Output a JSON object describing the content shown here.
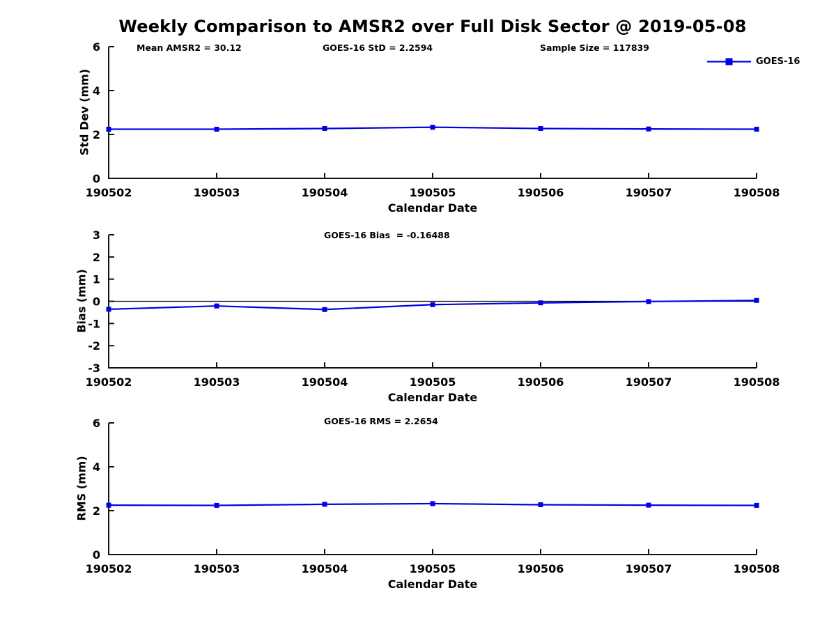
{
  "title": "Weekly Comparison to AMSR2 over Full Disk Sector @ 2019-05-08",
  "legend": {
    "label": "GOES-16"
  },
  "colors": {
    "series_blue": "#0000e6",
    "axis_black": "#111111"
  },
  "chart_data": [
    {
      "type": "line",
      "categories": [
        "190502",
        "190503",
        "190504",
        "190505",
        "190506",
        "190507",
        "190508"
      ],
      "series": [
        {
          "name": "GOES-16",
          "values": [
            2.24,
            2.24,
            2.27,
            2.33,
            2.27,
            2.25,
            2.24
          ]
        }
      ],
      "title": "",
      "xlabel": "Calendar Date",
      "ylabel": "Std Dev (mm)",
      "ylim": [
        0,
        6
      ],
      "yticks": [
        0,
        2,
        4,
        6
      ],
      "grid": false,
      "zero_line": false,
      "legend_position": "northeast-outside",
      "annotations": [
        "Mean AMSR2 = 30.12",
        "GOES-16 StD = 2.2594",
        "Sample Size = 117839"
      ]
    },
    {
      "type": "line",
      "categories": [
        "190502",
        "190503",
        "190504",
        "190505",
        "190506",
        "190507",
        "190508"
      ],
      "series": [
        {
          "name": "GOES-16",
          "values": [
            -0.36,
            -0.21,
            -0.37,
            -0.15,
            -0.07,
            -0.01,
            0.04
          ]
        }
      ],
      "title": "",
      "xlabel": "Calendar Date",
      "ylabel": "Bias (mm)",
      "ylim": [
        -3,
        3
      ],
      "yticks": [
        -3,
        -2,
        -1,
        0,
        1,
        2,
        3
      ],
      "grid": false,
      "zero_line": true,
      "annotations": [
        "GOES-16 Bias  = -0.16488"
      ]
    },
    {
      "type": "line",
      "categories": [
        "190502",
        "190503",
        "190504",
        "190505",
        "190506",
        "190507",
        "190508"
      ],
      "series": [
        {
          "name": "GOES-16",
          "values": [
            2.25,
            2.24,
            2.29,
            2.32,
            2.27,
            2.25,
            2.24
          ]
        }
      ],
      "title": "",
      "xlabel": "Calendar Date",
      "ylabel": "RMS (mm)",
      "ylim": [
        0,
        6
      ],
      "yticks": [
        0,
        2,
        4,
        6
      ],
      "grid": false,
      "zero_line": false,
      "annotations": [
        "GOES-16 RMS = 2.2654"
      ]
    }
  ]
}
